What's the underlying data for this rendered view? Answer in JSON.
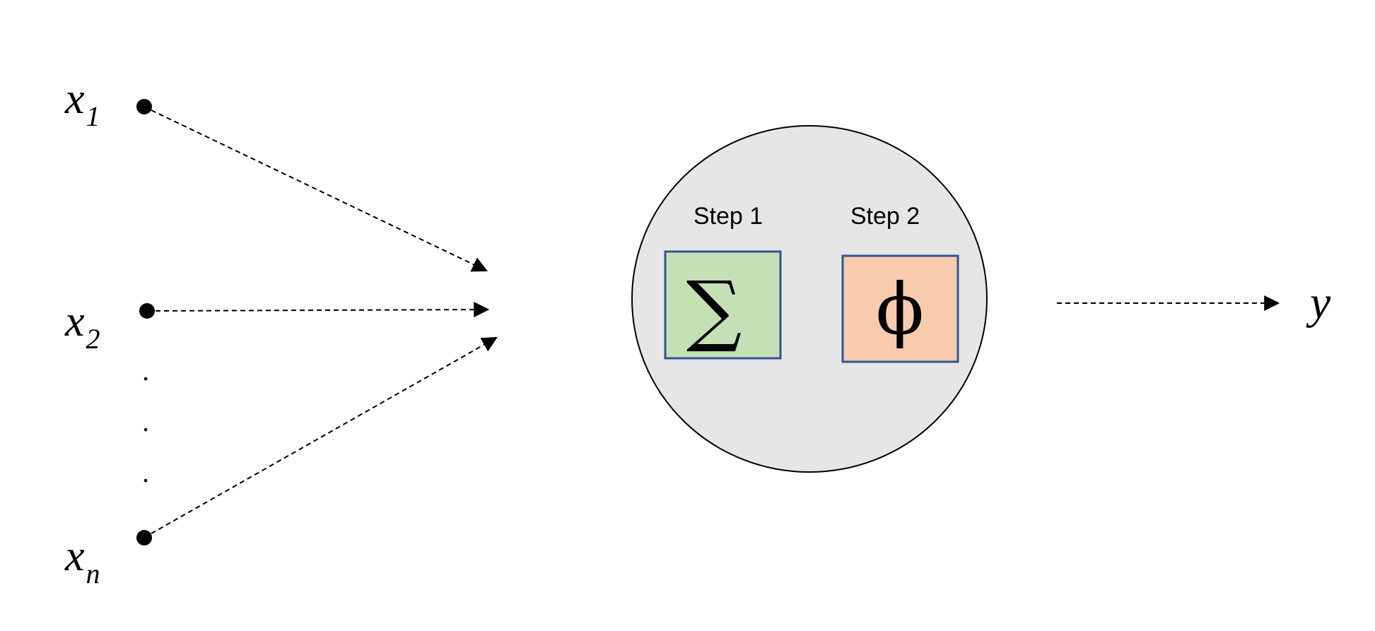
{
  "inputs": [
    {
      "name": "x",
      "subscript": "1"
    },
    {
      "name": "x",
      "subscript": "2"
    },
    {
      "name": "x",
      "subscript": "n"
    }
  ],
  "ellipsis_dots": ".",
  "neuron": {
    "step1": {
      "label": "Step 1",
      "symbol": "∑"
    },
    "step2": {
      "label": "Step 2",
      "symbol": "ϕ"
    }
  },
  "output": {
    "name": "y"
  },
  "colors": {
    "neuron_fill": "#e6e6e6",
    "step1_fill": "#c5e0b4",
    "step2_fill": "#f8cbad",
    "box_border": "#2f5597",
    "line": "#000000"
  }
}
